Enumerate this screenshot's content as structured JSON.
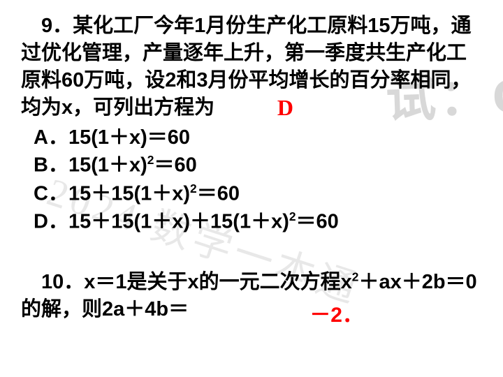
{
  "watermark": {
    "text1": "试：C",
    "text2": "2024 数学一本通"
  },
  "question9": {
    "prefix": "　9．",
    "body": "某化工厂今年1月份生产化工原料15万吨，通过优化管理，产量逐年上升，第一季度共生产化工原料60万吨，设2和3月份平均增长的百分率相同，均为x，可列出方程为",
    "answer": "D",
    "options": {
      "A_pre": "A．15(1＋x)＝60",
      "B_pre": "B．15(1＋x)",
      "B_post": "＝60",
      "C_pre": "C．15＋15(1＋x)",
      "C_post": "＝60",
      "D_pre": "D．15＋15(1＋x)＋15(1＋x)",
      "D_post": "＝60",
      "sq": "2"
    }
  },
  "question10": {
    "prefix": "　10．",
    "body_pre": "x＝1是关于x的一元二次方程x",
    "body_mid": "＋ax＋2b＝0的解，则2a＋4b＝",
    "sq": "2",
    "answer": "－2．"
  },
  "colors": {
    "text": "#000000",
    "answer": "#ff0000",
    "watermark_dark": "#d8d8d8",
    "watermark_light": "#e8e8e8",
    "background": "#ffffff"
  },
  "typography": {
    "body_fontsize": 29,
    "answer_fontsize": 32,
    "font_weight": "bold",
    "line_height": 1.35
  }
}
